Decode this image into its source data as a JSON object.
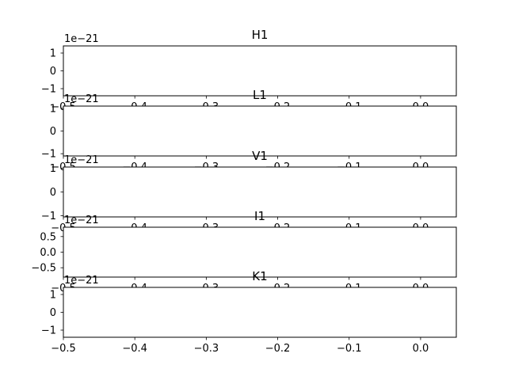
{
  "chart_data": {
    "type": "line",
    "layout": "5 vertically stacked subplots sharing x range",
    "xlim": [
      -0.5,
      0.05
    ],
    "x_ticks": [
      -0.5,
      -0.4,
      -0.3,
      -0.2,
      -0.1,
      0.0
    ],
    "x_tick_labels": [
      "−0.5",
      "−0.4",
      "−0.3",
      "−0.2",
      "−0.1",
      "0.0"
    ],
    "grid": false,
    "legend": "none",
    "panels": [
      {
        "title": "H1",
        "y_offset_text": "1e−21",
        "ylim": [
          -1.4,
          1.4
        ],
        "y_ticks": [
          -1,
          0,
          1
        ],
        "y_tick_labels": [
          "−1",
          "0",
          "1"
        ],
        "series": []
      },
      {
        "title": "L1",
        "y_offset_text": "1e−21",
        "ylim": [
          -1.1,
          1.1
        ],
        "y_ticks": [
          -1,
          0,
          1
        ],
        "y_tick_labels": [
          "−1",
          "0",
          "1"
        ],
        "series": []
      },
      {
        "title": "V1",
        "y_offset_text": "1e−21",
        "ylim": [
          -1.05,
          1.05
        ],
        "y_ticks": [
          -1,
          0,
          1
        ],
        "y_tick_labels": [
          "−1",
          "0",
          "1"
        ],
        "series": []
      },
      {
        "title": "I1",
        "y_offset_text": "1e−21",
        "ylim": [
          -0.8,
          0.8
        ],
        "y_ticks": [
          -0.5,
          0.0,
          0.5
        ],
        "y_tick_labels": [
          "−0.5",
          "0.0",
          "0.5"
        ],
        "series": []
      },
      {
        "title": "K1",
        "y_offset_text": "1e−21",
        "ylim": [
          -1.4,
          1.4
        ],
        "y_ticks": [
          -1,
          0,
          1
        ],
        "y_tick_labels": [
          "−1",
          "0",
          "1"
        ],
        "series": []
      }
    ]
  }
}
